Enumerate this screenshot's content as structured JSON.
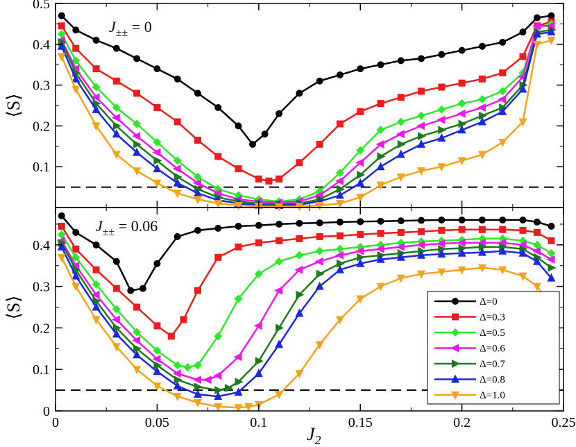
{
  "colors": {
    "axis": "#000000",
    "series": [
      "#000000",
      "#ee1c1c",
      "#2ee82e",
      "#ee18ee",
      "#1e7a1e",
      "#1a28e0",
      "#f7a21e"
    ]
  },
  "chart_data": [
    {
      "type": "line",
      "panel": "top",
      "annotation": "J±± = 0",
      "annotation_var": "J",
      "annotation_sub": "±±",
      "annotation_rest": " = 0",
      "xlabel": "",
      "ylabel": "⟨S⟩",
      "xlim": [
        0,
        0.25
      ],
      "ylim": [
        0,
        0.5
      ],
      "yticks": [
        0.1,
        0.2,
        0.3,
        0.4,
        0.5
      ],
      "ytick_labels": [
        "0.1",
        "0.2",
        "0.3",
        "0.4",
        "0.5"
      ],
      "xticks": [
        0,
        0.05,
        0.1,
        0.15,
        0.2,
        0.25
      ],
      "reference_line_y": 0.05,
      "series": [
        {
          "name": "Δ=0",
          "marker": "circle",
          "x": [
            0.003,
            0.01,
            0.02,
            0.03,
            0.04,
            0.05,
            0.06,
            0.07,
            0.08,
            0.09,
            0.097,
            0.103,
            0.11,
            0.12,
            0.13,
            0.14,
            0.15,
            0.16,
            0.17,
            0.18,
            0.19,
            0.2,
            0.21,
            0.22,
            0.23,
            0.237,
            0.244
          ],
          "y": [
            0.47,
            0.435,
            0.41,
            0.39,
            0.365,
            0.34,
            0.315,
            0.28,
            0.245,
            0.2,
            0.155,
            0.18,
            0.23,
            0.28,
            0.31,
            0.325,
            0.34,
            0.35,
            0.36,
            0.365,
            0.375,
            0.385,
            0.395,
            0.405,
            0.43,
            0.465,
            0.47
          ]
        },
        {
          "name": "Δ=0.3",
          "marker": "square",
          "x": [
            0.003,
            0.01,
            0.02,
            0.03,
            0.04,
            0.05,
            0.06,
            0.07,
            0.08,
            0.09,
            0.1,
            0.105,
            0.11,
            0.12,
            0.13,
            0.14,
            0.15,
            0.16,
            0.17,
            0.18,
            0.19,
            0.2,
            0.21,
            0.22,
            0.23,
            0.237,
            0.244
          ],
          "y": [
            0.445,
            0.39,
            0.34,
            0.31,
            0.28,
            0.245,
            0.21,
            0.165,
            0.125,
            0.095,
            0.07,
            0.065,
            0.07,
            0.11,
            0.155,
            0.205,
            0.235,
            0.255,
            0.27,
            0.285,
            0.295,
            0.305,
            0.315,
            0.33,
            0.37,
            0.445,
            0.455
          ]
        },
        {
          "name": "Δ=0.5",
          "marker": "diamond",
          "x": [
            0.003,
            0.01,
            0.02,
            0.03,
            0.04,
            0.05,
            0.06,
            0.07,
            0.08,
            0.09,
            0.1,
            0.11,
            0.12,
            0.13,
            0.14,
            0.15,
            0.16,
            0.17,
            0.18,
            0.19,
            0.2,
            0.21,
            0.22,
            0.23,
            0.237,
            0.244
          ],
          "y": [
            0.425,
            0.36,
            0.295,
            0.245,
            0.205,
            0.16,
            0.115,
            0.075,
            0.045,
            0.03,
            0.02,
            0.015,
            0.02,
            0.04,
            0.085,
            0.14,
            0.19,
            0.21,
            0.225,
            0.24,
            0.255,
            0.265,
            0.285,
            0.33,
            0.44,
            0.45
          ]
        },
        {
          "name": "Δ=0.6",
          "marker": "triangle-left",
          "x": [
            0.003,
            0.01,
            0.02,
            0.03,
            0.04,
            0.05,
            0.06,
            0.07,
            0.08,
            0.09,
            0.1,
            0.11,
            0.12,
            0.13,
            0.14,
            0.15,
            0.16,
            0.17,
            0.18,
            0.19,
            0.2,
            0.21,
            0.22,
            0.23,
            0.237,
            0.244
          ],
          "y": [
            0.41,
            0.34,
            0.27,
            0.22,
            0.175,
            0.135,
            0.095,
            0.06,
            0.035,
            0.02,
            0.015,
            0.012,
            0.015,
            0.03,
            0.065,
            0.11,
            0.155,
            0.18,
            0.2,
            0.215,
            0.23,
            0.245,
            0.265,
            0.32,
            0.445,
            0.445
          ]
        },
        {
          "name": "Δ=0.7",
          "marker": "triangle-right",
          "x": [
            0.003,
            0.01,
            0.02,
            0.03,
            0.04,
            0.05,
            0.06,
            0.07,
            0.08,
            0.09,
            0.1,
            0.11,
            0.12,
            0.13,
            0.14,
            0.15,
            0.16,
            0.17,
            0.18,
            0.19,
            0.2,
            0.21,
            0.22,
            0.23,
            0.237,
            0.244
          ],
          "y": [
            0.405,
            0.33,
            0.255,
            0.2,
            0.155,
            0.115,
            0.075,
            0.045,
            0.025,
            0.015,
            0.01,
            0.008,
            0.01,
            0.02,
            0.045,
            0.08,
            0.125,
            0.155,
            0.175,
            0.19,
            0.205,
            0.225,
            0.245,
            0.3,
            0.43,
            0.435
          ]
        },
        {
          "name": "Δ=0.8",
          "marker": "triangle-up",
          "x": [
            0.003,
            0.01,
            0.02,
            0.03,
            0.04,
            0.05,
            0.06,
            0.07,
            0.08,
            0.09,
            0.1,
            0.11,
            0.12,
            0.13,
            0.14,
            0.15,
            0.16,
            0.17,
            0.18,
            0.19,
            0.2,
            0.21,
            0.22,
            0.23,
            0.237,
            0.244
          ],
          "y": [
            0.395,
            0.315,
            0.24,
            0.18,
            0.135,
            0.095,
            0.06,
            0.035,
            0.018,
            0.01,
            0.006,
            0.005,
            0.007,
            0.015,
            0.03,
            0.06,
            0.1,
            0.13,
            0.155,
            0.17,
            0.19,
            0.21,
            0.235,
            0.29,
            0.425,
            0.43
          ]
        },
        {
          "name": "Δ=1.0",
          "marker": "triangle-down",
          "x": [
            0.003,
            0.01,
            0.02,
            0.03,
            0.04,
            0.05,
            0.06,
            0.07,
            0.08,
            0.09,
            0.1,
            0.11,
            0.12,
            0.13,
            0.14,
            0.15,
            0.16,
            0.17,
            0.18,
            0.19,
            0.2,
            0.21,
            0.22,
            0.23,
            0.237,
            0.244
          ],
          "y": [
            0.37,
            0.29,
            0.2,
            0.13,
            0.09,
            0.06,
            0.035,
            0.02,
            0.01,
            0.005,
            0.003,
            0.002,
            0.003,
            0.005,
            0.01,
            0.025,
            0.055,
            0.075,
            0.09,
            0.1,
            0.115,
            0.13,
            0.16,
            0.21,
            0.4,
            0.41
          ]
        }
      ]
    },
    {
      "type": "line",
      "panel": "bottom",
      "annotation": "J±± = 0.06",
      "annotation_var": "J",
      "annotation_sub": "±±",
      "annotation_rest": " = 0.06",
      "xlabel": "J2",
      "xlabel_var": "J",
      "xlabel_sub": "2",
      "ylabel": "⟨S⟩",
      "xlim": [
        0,
        0.25
      ],
      "ylim": [
        0,
        0.49
      ],
      "yticks": [
        0,
        0.1,
        0.2,
        0.3,
        0.4
      ],
      "ytick_labels": [
        "0",
        "0.1",
        "0.2",
        "0.3",
        "0.4"
      ],
      "xticks": [
        0,
        0.05,
        0.1,
        0.15,
        0.2,
        0.25
      ],
      "xtick_labels": [
        "0",
        "0.05",
        "0.1",
        "0.15",
        "0.2",
        "0.25"
      ],
      "reference_line_y": 0.05,
      "legend_position": "bottom-right",
      "series": [
        {
          "name": "Δ=0",
          "marker": "circle",
          "x": [
            0.003,
            0.01,
            0.02,
            0.03,
            0.037,
            0.043,
            0.05,
            0.06,
            0.07,
            0.08,
            0.09,
            0.1,
            0.11,
            0.12,
            0.13,
            0.14,
            0.15,
            0.16,
            0.17,
            0.18,
            0.19,
            0.2,
            0.21,
            0.22,
            0.23,
            0.237,
            0.244
          ],
          "y": [
            0.47,
            0.43,
            0.4,
            0.36,
            0.29,
            0.295,
            0.355,
            0.42,
            0.435,
            0.44,
            0.445,
            0.447,
            0.45,
            0.452,
            0.453,
            0.455,
            0.456,
            0.457,
            0.458,
            0.459,
            0.46,
            0.46,
            0.46,
            0.46,
            0.46,
            0.455,
            0.445
          ]
        },
        {
          "name": "Δ=0.3",
          "marker": "square",
          "x": [
            0.003,
            0.01,
            0.02,
            0.03,
            0.04,
            0.05,
            0.057,
            0.063,
            0.07,
            0.08,
            0.09,
            0.1,
            0.11,
            0.12,
            0.13,
            0.14,
            0.15,
            0.16,
            0.17,
            0.18,
            0.19,
            0.2,
            0.21,
            0.22,
            0.23,
            0.237,
            0.244
          ],
          "y": [
            0.445,
            0.39,
            0.34,
            0.295,
            0.25,
            0.205,
            0.18,
            0.22,
            0.29,
            0.37,
            0.395,
            0.405,
            0.41,
            0.415,
            0.42,
            0.422,
            0.425,
            0.428,
            0.43,
            0.432,
            0.435,
            0.437,
            0.437,
            0.437,
            0.435,
            0.43,
            0.41
          ]
        },
        {
          "name": "Δ=0.5",
          "marker": "diamond",
          "x": [
            0.003,
            0.01,
            0.02,
            0.03,
            0.04,
            0.05,
            0.06,
            0.065,
            0.07,
            0.08,
            0.09,
            0.1,
            0.11,
            0.12,
            0.13,
            0.14,
            0.15,
            0.16,
            0.17,
            0.18,
            0.19,
            0.2,
            0.21,
            0.22,
            0.23,
            0.237,
            0.244
          ],
          "y": [
            0.425,
            0.37,
            0.305,
            0.245,
            0.19,
            0.145,
            0.11,
            0.105,
            0.11,
            0.18,
            0.27,
            0.33,
            0.36,
            0.375,
            0.385,
            0.39,
            0.395,
            0.4,
            0.405,
            0.408,
            0.41,
            0.412,
            0.415,
            0.415,
            0.41,
            0.4,
            0.38
          ]
        },
        {
          "name": "Δ=0.6",
          "marker": "triangle-left",
          "x": [
            0.003,
            0.01,
            0.02,
            0.03,
            0.04,
            0.05,
            0.06,
            0.07,
            0.075,
            0.08,
            0.09,
            0.1,
            0.11,
            0.12,
            0.13,
            0.14,
            0.15,
            0.16,
            0.17,
            0.18,
            0.19,
            0.2,
            0.21,
            0.22,
            0.23,
            0.237,
            0.244
          ],
          "y": [
            0.41,
            0.35,
            0.28,
            0.22,
            0.17,
            0.125,
            0.09,
            0.075,
            0.075,
            0.085,
            0.13,
            0.205,
            0.29,
            0.34,
            0.36,
            0.375,
            0.385,
            0.39,
            0.395,
            0.4,
            0.403,
            0.405,
            0.405,
            0.405,
            0.4,
            0.385,
            0.365
          ]
        },
        {
          "name": "Δ=0.7",
          "marker": "triangle-right",
          "x": [
            0.003,
            0.01,
            0.02,
            0.03,
            0.04,
            0.05,
            0.06,
            0.07,
            0.08,
            0.085,
            0.09,
            0.1,
            0.11,
            0.12,
            0.13,
            0.14,
            0.15,
            0.16,
            0.17,
            0.18,
            0.19,
            0.2,
            0.21,
            0.22,
            0.23,
            0.237,
            0.244
          ],
          "y": [
            0.405,
            0.34,
            0.265,
            0.2,
            0.15,
            0.11,
            0.075,
            0.058,
            0.05,
            0.055,
            0.07,
            0.12,
            0.2,
            0.28,
            0.33,
            0.355,
            0.37,
            0.375,
            0.38,
            0.385,
            0.39,
            0.392,
            0.395,
            0.395,
            0.39,
            0.37,
            0.345
          ]
        },
        {
          "name": "Δ=0.8",
          "marker": "triangle-up",
          "x": [
            0.003,
            0.01,
            0.02,
            0.03,
            0.04,
            0.05,
            0.06,
            0.07,
            0.08,
            0.09,
            0.1,
            0.11,
            0.12,
            0.13,
            0.14,
            0.15,
            0.16,
            0.17,
            0.18,
            0.19,
            0.2,
            0.21,
            0.22,
            0.23,
            0.237,
            0.244
          ],
          "y": [
            0.395,
            0.325,
            0.25,
            0.185,
            0.135,
            0.095,
            0.06,
            0.04,
            0.035,
            0.045,
            0.09,
            0.16,
            0.235,
            0.3,
            0.34,
            0.355,
            0.365,
            0.37,
            0.375,
            0.378,
            0.38,
            0.382,
            0.385,
            0.38,
            0.36,
            0.32
          ]
        },
        {
          "name": "Δ=1.0",
          "marker": "triangle-down",
          "x": [
            0.003,
            0.01,
            0.02,
            0.03,
            0.04,
            0.05,
            0.06,
            0.07,
            0.08,
            0.09,
            0.095,
            0.1,
            0.11,
            0.12,
            0.13,
            0.14,
            0.15,
            0.16,
            0.17,
            0.18,
            0.19,
            0.2,
            0.21,
            0.22,
            0.23,
            0.237,
            0.244
          ],
          "y": [
            0.37,
            0.3,
            0.22,
            0.155,
            0.1,
            0.06,
            0.035,
            0.02,
            0.01,
            0.008,
            0.01,
            0.015,
            0.04,
            0.09,
            0.16,
            0.22,
            0.27,
            0.3,
            0.32,
            0.33,
            0.335,
            0.34,
            0.345,
            0.34,
            0.325,
            0.3,
            0.255
          ]
        }
      ]
    }
  ]
}
